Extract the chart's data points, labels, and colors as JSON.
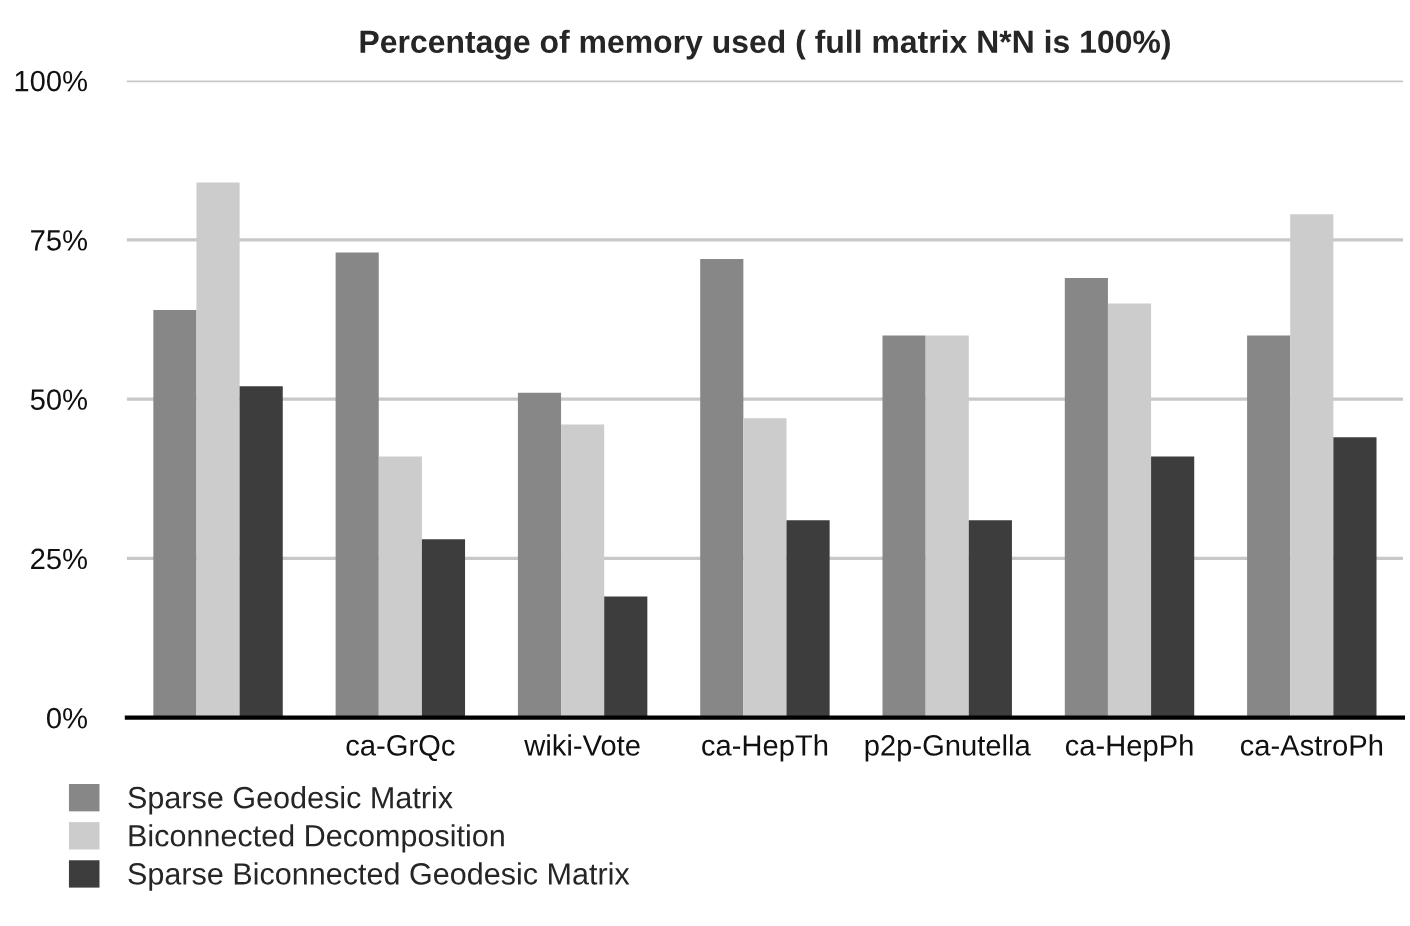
{
  "chart_data": {
    "type": "bar",
    "title": "Percentage of memory used ( full matrix N*N is 100%)",
    "categories": [
      null,
      "ca-GrQc",
      "wiki-Vote",
      "ca-HepTh",
      "p2p-Gnutella",
      "ca-HepPh",
      "ca-AstroPh"
    ],
    "series": [
      {
        "name": "Sparse Geodesic Matrix",
        "color": "#878787",
        "values": [
          64,
          73,
          51,
          72,
          60,
          69,
          60
        ]
      },
      {
        "name": "Biconnected Decomposition",
        "color": "#cbcccb",
        "values": [
          84,
          41,
          46,
          47,
          60,
          65,
          79
        ]
      },
      {
        "name": "Sparse Biconnected Geodesic Matrix",
        "color": "#3d3d3d",
        "values": [
          52,
          28,
          19,
          31,
          31,
          41,
          44
        ]
      }
    ],
    "ylim": [
      0,
      100
    ],
    "yticks": [
      {
        "value": 0,
        "label": "0%"
      },
      {
        "value": 25,
        "label": "25%"
      },
      {
        "value": 50,
        "label": "50%"
      },
      {
        "value": 75,
        "label": "75%"
      },
      {
        "value": 100,
        "label": "100%"
      }
    ],
    "grid": "y",
    "legend": "bottom left"
  }
}
